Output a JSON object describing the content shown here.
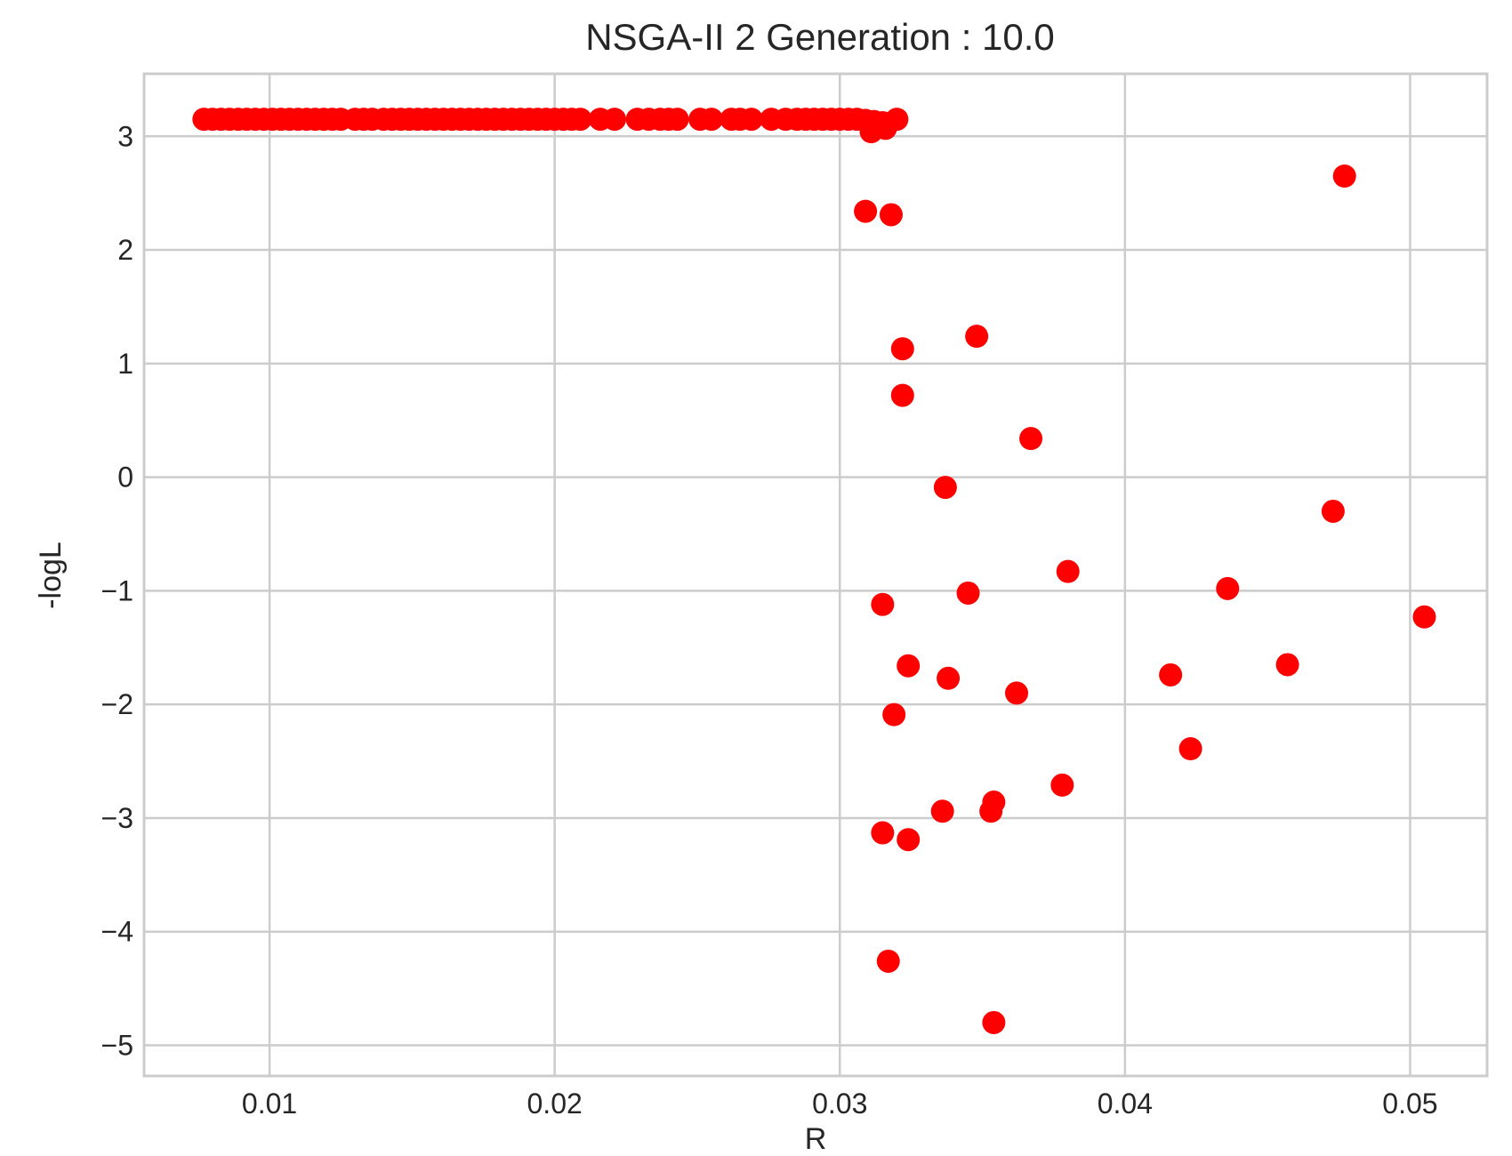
{
  "chart_data": {
    "type": "scatter",
    "title": "NSGA-II 2 Generation : 10.0",
    "xlabel": "R",
    "ylabel": "-logL",
    "xlim": [
      0.0056,
      0.0527
    ],
    "ylim": [
      -5.27,
      3.55
    ],
    "grid": true,
    "x_ticks": [
      0.01,
      0.02,
      0.03,
      0.04,
      0.05
    ],
    "x_tick_labels": [
      "0.01",
      "0.02",
      "0.03",
      "0.04",
      "0.05"
    ],
    "y_ticks": [
      3,
      2,
      1,
      0,
      -1,
      -2,
      -3,
      -4,
      -5
    ],
    "y_tick_labels": [
      "3",
      "2",
      "1",
      "0",
      "−1",
      "−2",
      "−3",
      "−4",
      "−5"
    ],
    "marker_color": "#ff0000",
    "series": [
      {
        "color": "#ff0000",
        "points": [
          [
            0.0077,
            3.15
          ],
          [
            0.008,
            3.15
          ],
          [
            0.0083,
            3.15
          ],
          [
            0.0086,
            3.15
          ],
          [
            0.0089,
            3.15
          ],
          [
            0.0092,
            3.15
          ],
          [
            0.0095,
            3.15
          ],
          [
            0.0098,
            3.15
          ],
          [
            0.0101,
            3.15
          ],
          [
            0.0104,
            3.15
          ],
          [
            0.0107,
            3.15
          ],
          [
            0.011,
            3.15
          ],
          [
            0.0113,
            3.15
          ],
          [
            0.0116,
            3.15
          ],
          [
            0.0119,
            3.15
          ],
          [
            0.0122,
            3.15
          ],
          [
            0.0125,
            3.15
          ],
          [
            0.013,
            3.15
          ],
          [
            0.0133,
            3.15
          ],
          [
            0.0136,
            3.15
          ],
          [
            0.014,
            3.15
          ],
          [
            0.0143,
            3.15
          ],
          [
            0.0146,
            3.15
          ],
          [
            0.0149,
            3.15
          ],
          [
            0.0152,
            3.15
          ],
          [
            0.0155,
            3.15
          ],
          [
            0.0158,
            3.15
          ],
          [
            0.0161,
            3.15
          ],
          [
            0.0164,
            3.15
          ],
          [
            0.0167,
            3.15
          ],
          [
            0.017,
            3.15
          ],
          [
            0.0173,
            3.15
          ],
          [
            0.0176,
            3.15
          ],
          [
            0.0179,
            3.15
          ],
          [
            0.0182,
            3.15
          ],
          [
            0.0185,
            3.15
          ],
          [
            0.0188,
            3.15
          ],
          [
            0.0191,
            3.15
          ],
          [
            0.0194,
            3.15
          ],
          [
            0.0197,
            3.15
          ],
          [
            0.02,
            3.15
          ],
          [
            0.0203,
            3.15
          ],
          [
            0.0206,
            3.15
          ],
          [
            0.0209,
            3.15
          ],
          [
            0.0216,
            3.15
          ],
          [
            0.0221,
            3.15
          ],
          [
            0.0229,
            3.15
          ],
          [
            0.0233,
            3.15
          ],
          [
            0.0237,
            3.15
          ],
          [
            0.024,
            3.15
          ],
          [
            0.0243,
            3.15
          ],
          [
            0.0251,
            3.15
          ],
          [
            0.0255,
            3.15
          ],
          [
            0.0262,
            3.15
          ],
          [
            0.0265,
            3.15
          ],
          [
            0.0269,
            3.15
          ],
          [
            0.0276,
            3.15
          ],
          [
            0.0281,
            3.15
          ],
          [
            0.0285,
            3.15
          ],
          [
            0.0288,
            3.15
          ],
          [
            0.0291,
            3.15
          ],
          [
            0.0294,
            3.15
          ],
          [
            0.0297,
            3.15
          ],
          [
            0.03,
            3.15
          ],
          [
            0.0303,
            3.15
          ],
          [
            0.0306,
            3.15
          ],
          [
            0.0309,
            3.14
          ],
          [
            0.0312,
            3.13
          ],
          [
            0.0315,
            3.12
          ],
          [
            0.032,
            3.15
          ],
          [
            0.0311,
            3.04
          ],
          [
            0.0316,
            3.07
          ],
          [
            0.0477,
            2.65
          ],
          [
            0.0309,
            2.34
          ],
          [
            0.0318,
            2.31
          ],
          [
            0.0322,
            1.13
          ],
          [
            0.0348,
            1.24
          ],
          [
            0.0322,
            0.72
          ],
          [
            0.0367,
            0.34
          ],
          [
            0.0337,
            -0.09
          ],
          [
            0.0473,
            -0.3
          ],
          [
            0.038,
            -0.83
          ],
          [
            0.0436,
            -0.98
          ],
          [
            0.0345,
            -1.02
          ],
          [
            0.0315,
            -1.12
          ],
          [
            0.0505,
            -1.23
          ],
          [
            0.0324,
            -1.66
          ],
          [
            0.0457,
            -1.65
          ],
          [
            0.0338,
            -1.77
          ],
          [
            0.0416,
            -1.74
          ],
          [
            0.0362,
            -1.9
          ],
          [
            0.0319,
            -2.09
          ],
          [
            0.0423,
            -2.39
          ],
          [
            0.0378,
            -2.71
          ],
          [
            0.0354,
            -2.86
          ],
          [
            0.0336,
            -2.94
          ],
          [
            0.0353,
            -2.94
          ],
          [
            0.0315,
            -3.13
          ],
          [
            0.0324,
            -3.19
          ],
          [
            0.0317,
            -4.26
          ],
          [
            0.0354,
            -4.8
          ]
        ]
      }
    ]
  }
}
